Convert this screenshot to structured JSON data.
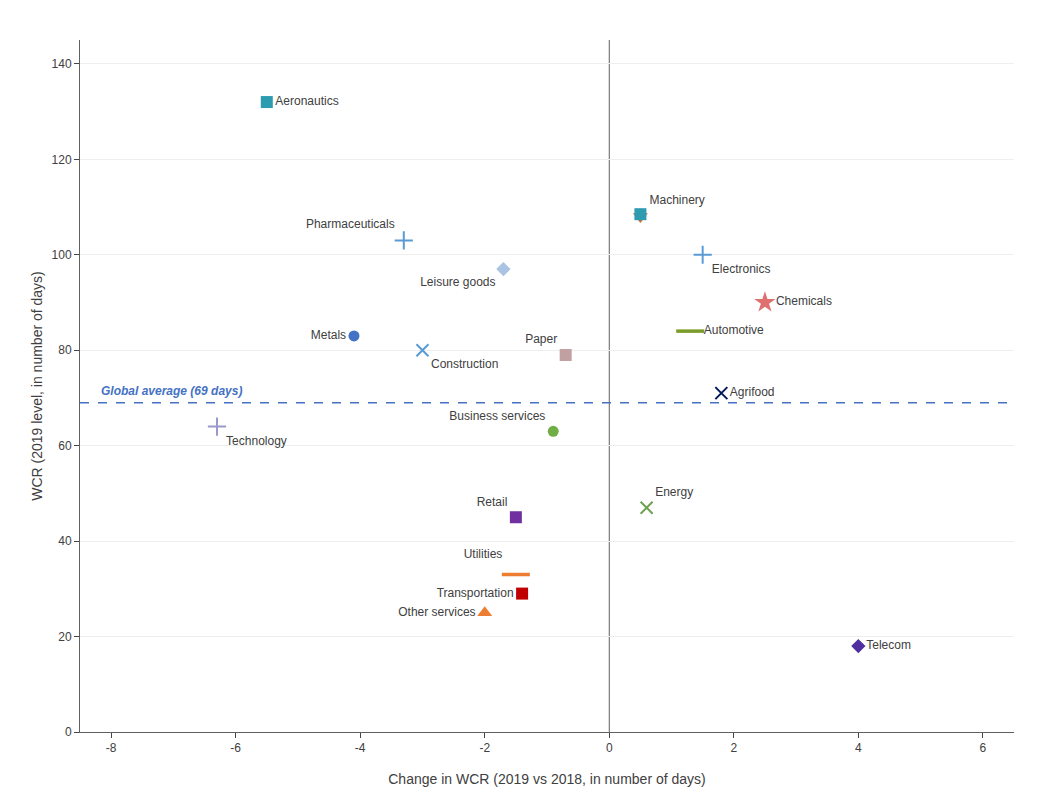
{
  "chart_data": {
    "type": "scatter",
    "xlabel": "Change in WCR (2019 vs 2018, in number of days)",
    "ylabel": "WCR (2019 level, in number of days)",
    "xlim": [
      -8.5,
      6.5
    ],
    "ylim": [
      0,
      145
    ],
    "xticks": [
      -8,
      -6,
      -4,
      -2,
      0,
      2,
      4,
      6
    ],
    "yticks": [
      0,
      20,
      40,
      60,
      80,
      100,
      120,
      140
    ],
    "grid": "y",
    "legend": false,
    "hline": {
      "value": 69,
      "label": "Global average (69 days)",
      "color": "#4472C4",
      "line_style": "dashed"
    },
    "vline": {
      "value": 0,
      "color": "#606060",
      "line_style": "solid"
    },
    "series": [
      {
        "name": "Aeronautics",
        "x": [
          -5.5
        ],
        "values": [
          132
        ],
        "marker": "square",
        "color": "#2E9CB0"
      },
      {
        "name": "Pharmaceuticals",
        "x": [
          -3.3
        ],
        "values": [
          103
        ],
        "marker": "plus",
        "color": "#5B9BD5"
      },
      {
        "name": "Leisure goods",
        "x": [
          -1.7
        ],
        "values": [
          97
        ],
        "marker": "diamond",
        "color": "#A9C4E2"
      },
      {
        "name": "Metals",
        "x": [
          -4.1
        ],
        "values": [
          83
        ],
        "marker": "circle",
        "color": "#4472C4"
      },
      {
        "name": "Construction",
        "x": [
          -3.0
        ],
        "values": [
          80
        ],
        "marker": "x",
        "color": "#5B9BD5"
      },
      {
        "name": "Paper",
        "x": [
          -0.7
        ],
        "values": [
          79
        ],
        "marker": "square",
        "color": "#C0A0A0"
      },
      {
        "name": "Technology",
        "x": [
          -6.3
        ],
        "values": [
          64
        ],
        "marker": "plus",
        "color": "#9999CC"
      },
      {
        "name": "Business services",
        "x": [
          -0.9
        ],
        "values": [
          63
        ],
        "marker": "circle",
        "color": "#70AD47"
      },
      {
        "name": "Machinery",
        "x": [
          0.5
        ],
        "values": [
          108
        ],
        "marker": "triangle-down",
        "color": "#C07030"
      },
      {
        "name": "Electronics",
        "x": [
          1.5
        ],
        "values": [
          100
        ],
        "marker": "plus",
        "color": "#5B9BD5"
      },
      {
        "name": "Chemicals",
        "x": [
          2.5
        ],
        "values": [
          90
        ],
        "marker": "star",
        "color": "#E07070"
      },
      {
        "name": "Automotive",
        "x": [
          1.3
        ],
        "values": [
          84
        ],
        "marker": "hline",
        "color": "#7B9C2A"
      },
      {
        "name": "Agrifood",
        "x": [
          1.8
        ],
        "values": [
          71
        ],
        "marker": "x",
        "color": "#001A5C"
      },
      {
        "name": "Energy",
        "x": [
          0.6
        ],
        "values": [
          47
        ],
        "marker": "x",
        "color": "#70A050"
      },
      {
        "name": "Retail",
        "x": [
          -1.5
        ],
        "values": [
          45
        ],
        "marker": "square",
        "color": "#7030A0"
      },
      {
        "name": "Utilities",
        "x": [
          -1.5
        ],
        "values": [
          33
        ],
        "marker": "hline",
        "color": "#ED7D31"
      },
      {
        "name": "Transportation",
        "x": [
          -1.4
        ],
        "values": [
          29
        ],
        "marker": "square",
        "color": "#C00000"
      },
      {
        "name": "Other services",
        "x": [
          -2.0
        ],
        "values": [
          25
        ],
        "marker": "triangle-up",
        "color": "#ED7D31"
      },
      {
        "name": "Telecom",
        "x": [
          4.0
        ],
        "values": [
          18
        ],
        "marker": "diamond",
        "color": "#5030A0"
      },
      {
        "x": [
          0.5
        ],
        "values": [
          108.5
        ],
        "marker": "square",
        "color": "#2E9CB0"
      }
    ]
  }
}
